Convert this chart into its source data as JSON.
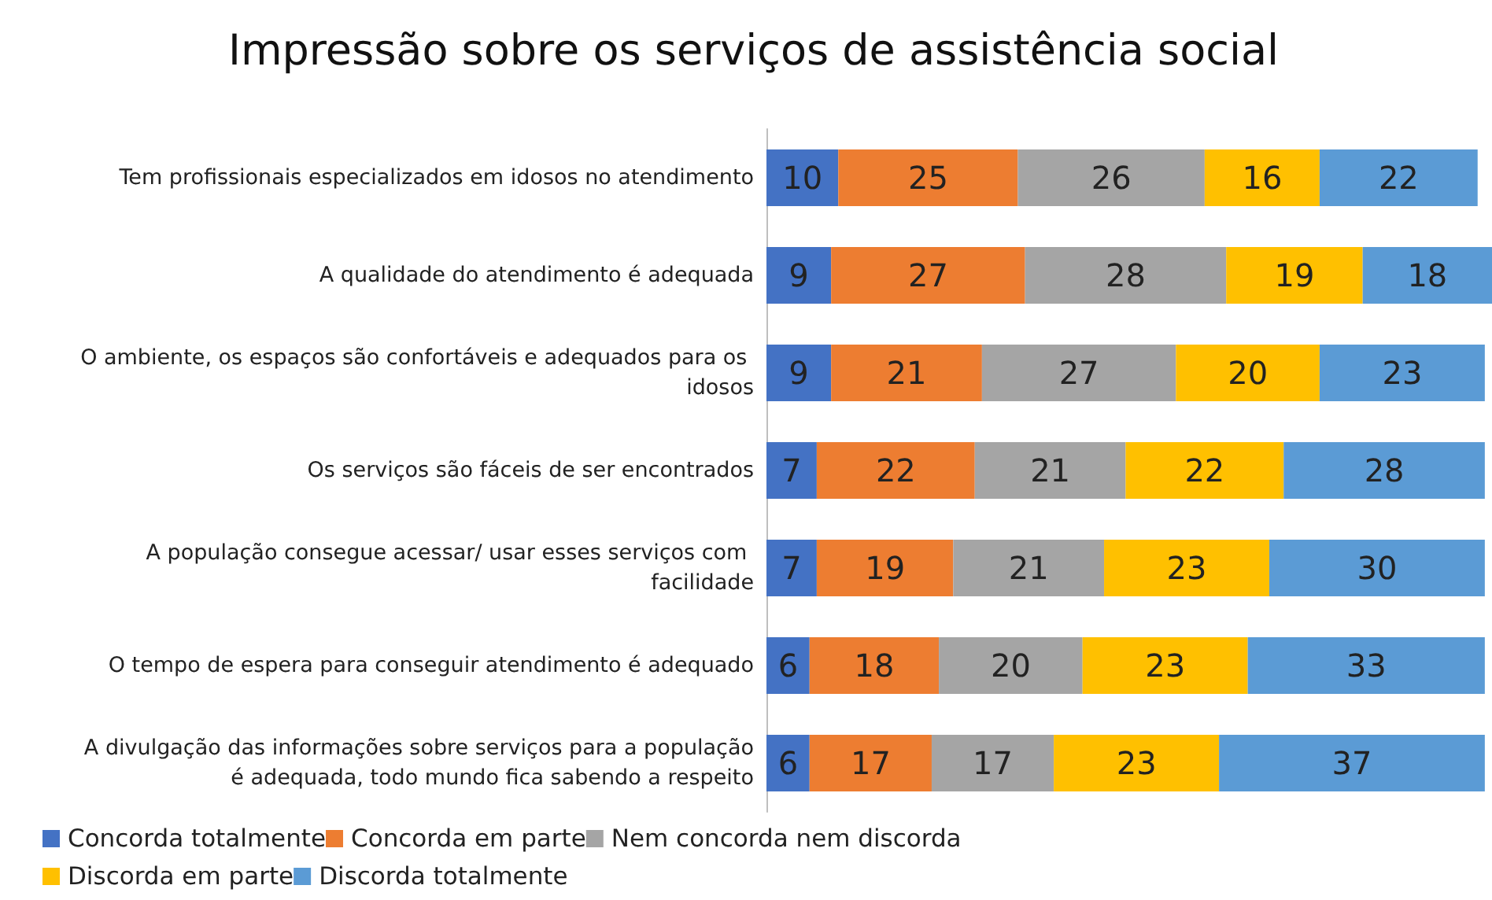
{
  "chart_data": {
    "type": "bar",
    "title": "Impressão sobre os serviços de assistência social",
    "orientation": "horizontal",
    "stacked": true,
    "data_labels": true,
    "legend": "bottom",
    "tick_labels": "y",
    "categories": [
      "Tem profissionais especializados em idosos no atendimento",
      "A qualidade do atendimento é adequada",
      "O ambiente, os espaços são confortáveis e adequados para os idosos",
      "Os serviços são fáceis de ser encontrados",
      "A população consegue acessar/ usar esses serviços com facilidade",
      "O tempo de espera para conseguir atendimento é adequado",
      "A divulgação das informações sobre serviços para a população é adequada, todo mundo fica sabendo a respeito"
    ],
    "series": [
      {
        "name": "Concorda totalmente",
        "color": "#4472c4",
        "values": [
          10,
          9,
          9,
          7,
          7,
          6,
          6
        ]
      },
      {
        "name": "Concorda em parte",
        "color": "#ed7d31",
        "values": [
          25,
          27,
          21,
          22,
          19,
          18,
          17
        ]
      },
      {
        "name": "Nem concorda nem discorda",
        "color": "#a5a5a5",
        "values": [
          26,
          28,
          27,
          21,
          21,
          20,
          17
        ]
      },
      {
        "name": "Discorda em parte",
        "color": "#ffc000",
        "values": [
          16,
          19,
          20,
          22,
          23,
          23,
          23
        ]
      },
      {
        "name": "Discorda totalmente",
        "color": "#5b9bd5",
        "values": [
          22,
          18,
          23,
          28,
          30,
          33,
          37
        ]
      }
    ]
  }
}
